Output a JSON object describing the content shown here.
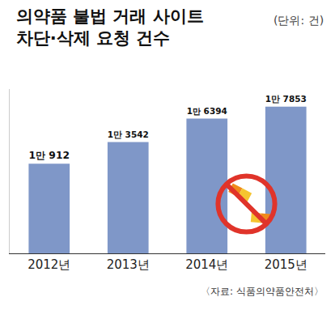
{
  "chart_data": {
    "type": "bar",
    "title": "의약품 불법 거래 사이트\n차단·삭제 요청 건수",
    "annotations": [
      {
        "text": "(단위: 건)"
      },
      {
        "text": "〈자료: 식품의약품안전처〉"
      }
    ],
    "categories": [
      "2012년",
      "2013년",
      "2014년",
      "2015년"
    ],
    "values": [
      10912,
      13542,
      16394,
      17853
    ],
    "value_labels": [
      "1만 912",
      "1만 3542",
      "1만 6394",
      "1만 7853"
    ],
    "color": "#7f97c8",
    "ylim": [
      0,
      20000
    ],
    "grid": false,
    "data_labels": true,
    "tick_labels": "x"
  }
}
